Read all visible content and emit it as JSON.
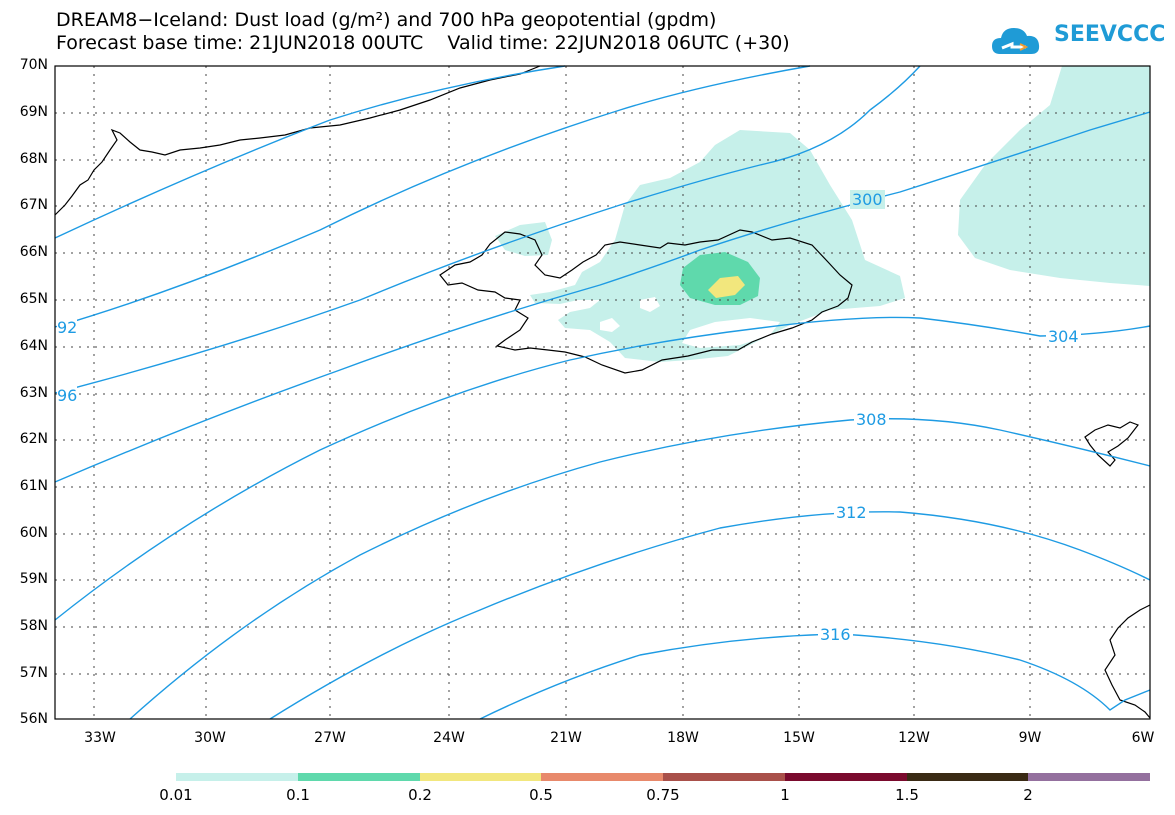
{
  "title_line1": "DREAM8−Iceland: Dust load (g/m²) and 700 hPa geopotential (gpdm)",
  "title_line2": "Forecast base time: 21JUN2018 00UTC    Valid time: 22JUN2018 06UTC (+30)",
  "logo_text": "SEEVCCC",
  "latitude_labels": [
    "70N",
    "69N",
    "68N",
    "67N",
    "66N",
    "65N",
    "64N",
    "63N",
    "62N",
    "61N",
    "60N",
    "59N",
    "58N",
    "57N",
    "56N"
  ],
  "longitude_labels": [
    "33W",
    "30W",
    "27W",
    "24W",
    "21W",
    "18W",
    "15W",
    "12W",
    "9W",
    "6W"
  ],
  "contour_labels": [
    "300",
    "304",
    "308",
    "312",
    "316",
    "92",
    "96"
  ],
  "legend": {
    "ticks": [
      "0.01",
      "0.1",
      "0.2",
      "0.5",
      "0.75",
      "1",
      "1.5",
      "2"
    ],
    "colors": [
      "#c6f0ea",
      "#5fd9ac",
      "#f2e77d",
      "#e8896b",
      "#a9504a",
      "#7a0a2d",
      "#3a2a14",
      "#94709e"
    ]
  },
  "colors": {
    "contour": "#1e9be3",
    "dust_low": "#c6f0ea",
    "dust_mid": "#5fd9ac",
    "dust_high": "#f2e77d"
  }
}
